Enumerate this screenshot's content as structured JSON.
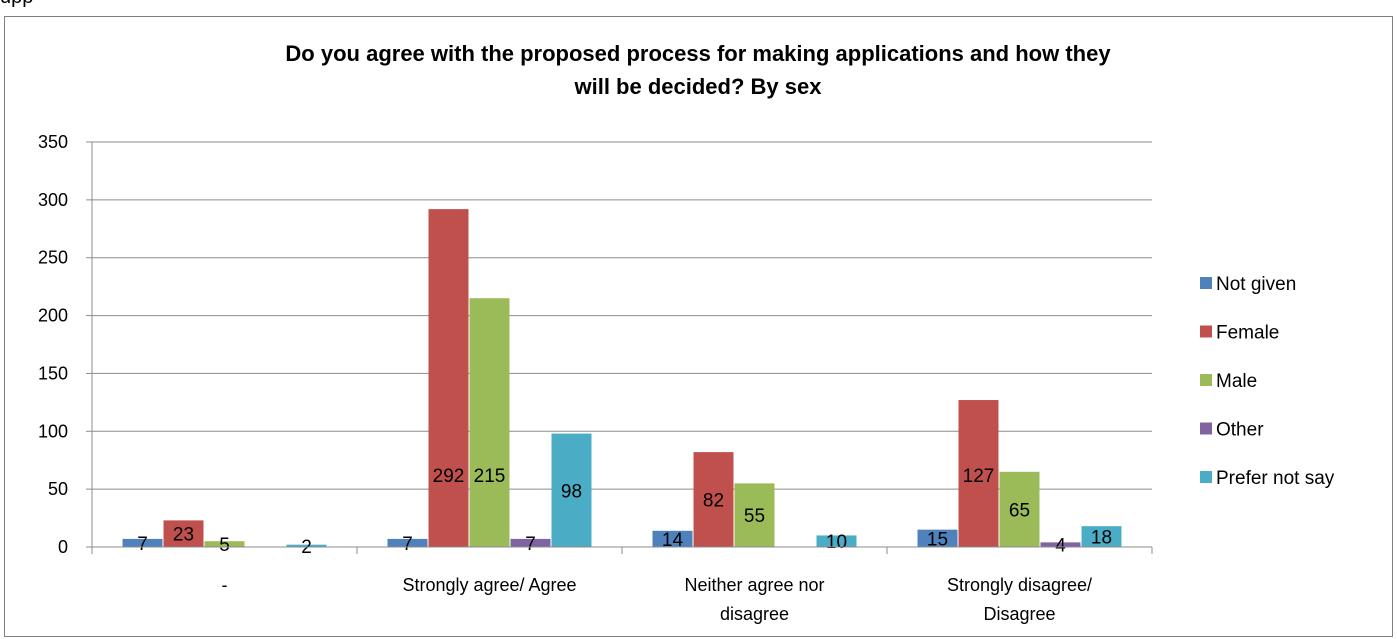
{
  "page": {
    "top_text": "upp"
  },
  "chart_data": {
    "type": "bar",
    "title_lines": [
      "Do you agree with the proposed process for making applications and how they",
      "will be decided? By sex"
    ],
    "categories": [
      [
        "-"
      ],
      [
        "Strongly agree/ Agree"
      ],
      [
        "Neither agree nor",
        "disagree"
      ],
      [
        "Strongly disagree/",
        "Disagree"
      ]
    ],
    "series": [
      {
        "name": "Not given",
        "color": "#4f81bd",
        "values": [
          7,
          7,
          14,
          15
        ]
      },
      {
        "name": "Female",
        "color": "#c0504d",
        "values": [
          23,
          292,
          82,
          127
        ]
      },
      {
        "name": "Male",
        "color": "#9bbb59",
        "values": [
          5,
          215,
          55,
          65
        ]
      },
      {
        "name": "Other",
        "color": "#8064a2",
        "values": [
          0,
          7,
          0,
          4
        ]
      },
      {
        "name": "Prefer not say",
        "color": "#4bacc6",
        "values": [
          2,
          98,
          10,
          18
        ]
      }
    ],
    "data_labels": [
      [
        "7",
        "23",
        "5",
        "",
        "2"
      ],
      [
        "7",
        "292",
        "215",
        "7",
        "98"
      ],
      [
        "14",
        "82",
        "55",
        "",
        "10"
      ],
      [
        "15",
        "127",
        "65",
        "4",
        "18"
      ]
    ],
    "ylim": [
      0,
      350
    ],
    "yticks": [
      "0",
      "50",
      "100",
      "150",
      "200",
      "250",
      "300",
      "350"
    ],
    "grid": true,
    "legend": "right",
    "xlabel": "",
    "ylabel": ""
  }
}
